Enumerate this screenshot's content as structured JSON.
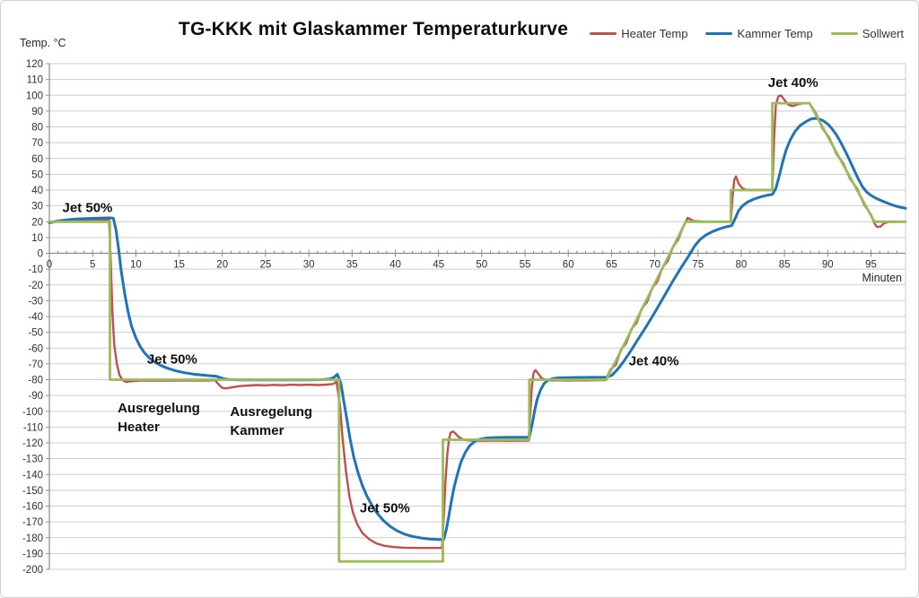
{
  "chart_data": {
    "type": "line",
    "title": "TG-KKK mit Glaskammer Temperaturkurve",
    "xlabel": "Minuten",
    "ylabel": "Temp. °C",
    "xlim": [
      0,
      99
    ],
    "ylim": [
      -200,
      120
    ],
    "x_major_tick": 5,
    "x_minor_tick": 1,
    "y_tick": 10,
    "grid": "horizontal",
    "legend_position": "top-right",
    "series": [
      {
        "name": "Heater Temp",
        "color": "#C0504D",
        "width": 2.4,
        "points": [
          [
            0,
            20
          ],
          [
            3,
            20.4
          ],
          [
            6,
            21
          ],
          [
            6.9,
            21.3
          ],
          [
            7.1,
            -5
          ],
          [
            7.3,
            -38
          ],
          [
            7.5,
            -58
          ],
          [
            7.8,
            -70
          ],
          [
            8.1,
            -77
          ],
          [
            8.5,
            -80.5
          ],
          [
            8.9,
            -81.4
          ],
          [
            9.4,
            -81
          ],
          [
            10.5,
            -80.6
          ],
          [
            12,
            -80.5
          ],
          [
            14,
            -80.6
          ],
          [
            16,
            -80.5
          ],
          [
            18,
            -80.6
          ],
          [
            19.2,
            -80.4
          ],
          [
            19.6,
            -83.2
          ],
          [
            20,
            -85.2
          ],
          [
            20.5,
            -85.5
          ],
          [
            21.2,
            -84.7
          ],
          [
            22,
            -84.1
          ],
          [
            23,
            -83.7
          ],
          [
            24,
            -83.4
          ],
          [
            25,
            -83.6
          ],
          [
            26,
            -83.3
          ],
          [
            27,
            -83.5
          ],
          [
            28,
            -83.2
          ],
          [
            29,
            -83.4
          ],
          [
            30,
            -83.2
          ],
          [
            31,
            -83.4
          ],
          [
            32,
            -83.1
          ],
          [
            32.8,
            -82.7
          ],
          [
            33.2,
            -81.3
          ],
          [
            33.6,
            -96
          ],
          [
            33.9,
            -117
          ],
          [
            34.3,
            -138
          ],
          [
            34.7,
            -154
          ],
          [
            35.1,
            -164
          ],
          [
            35.6,
            -171.5
          ],
          [
            36.2,
            -177
          ],
          [
            37,
            -181
          ],
          [
            37.8,
            -183.6
          ],
          [
            38.7,
            -185.1
          ],
          [
            39.7,
            -185.9
          ],
          [
            41,
            -186.3
          ],
          [
            43,
            -186.5
          ],
          [
            45.4,
            -186.5
          ],
          [
            45.6,
            -168
          ],
          [
            45.8,
            -145
          ],
          [
            46,
            -128
          ],
          [
            46.2,
            -118
          ],
          [
            46.4,
            -113.5
          ],
          [
            46.7,
            -112.8
          ],
          [
            47,
            -114.3
          ],
          [
            47.4,
            -116.6
          ],
          [
            47.9,
            -118
          ],
          [
            48.6,
            -118.5
          ],
          [
            50,
            -118.7
          ],
          [
            51.5,
            -118.5
          ],
          [
            53,
            -118.7
          ],
          [
            54.5,
            -118.6
          ],
          [
            55.4,
            -118.6
          ],
          [
            55.6,
            -102
          ],
          [
            55.8,
            -84
          ],
          [
            56,
            -75.5
          ],
          [
            56.2,
            -74
          ],
          [
            56.5,
            -76
          ],
          [
            56.9,
            -78.9
          ],
          [
            57.4,
            -80.2
          ],
          [
            58.2,
            -80.5
          ],
          [
            59,
            -80.4
          ],
          [
            60,
            -80.5
          ],
          [
            61,
            -80.4
          ],
          [
            62,
            -80.5
          ],
          [
            63,
            -80.4
          ],
          [
            64.3,
            -80.3
          ],
          [
            64.9,
            -73.5
          ],
          [
            65.5,
            -70.5
          ],
          [
            66.1,
            -60.8
          ],
          [
            66.7,
            -57
          ],
          [
            67.3,
            -48
          ],
          [
            67.9,
            -44
          ],
          [
            68.5,
            -35
          ],
          [
            69.1,
            -31
          ],
          [
            69.7,
            -22
          ],
          [
            70.3,
            -18
          ],
          [
            70.9,
            -9
          ],
          [
            71.5,
            -5
          ],
          [
            72.1,
            4
          ],
          [
            72.7,
            8.5
          ],
          [
            73.3,
            17
          ],
          [
            73.6,
            20
          ],
          [
            73.8,
            22.4
          ],
          [
            74.1,
            21.6
          ],
          [
            74.5,
            20.4
          ],
          [
            75.5,
            20.1
          ],
          [
            77,
            20
          ],
          [
            78.8,
            20
          ],
          [
            79,
            36
          ],
          [
            79.2,
            46.5
          ],
          [
            79.4,
            48.6
          ],
          [
            79.7,
            44
          ],
          [
            80.1,
            41.3
          ],
          [
            80.5,
            40.3
          ],
          [
            81.2,
            40
          ],
          [
            82,
            40.1
          ],
          [
            83,
            40
          ],
          [
            83.6,
            40
          ],
          [
            83.8,
            72
          ],
          [
            84,
            94
          ],
          [
            84.3,
            99.3
          ],
          [
            84.6,
            100
          ],
          [
            85,
            97
          ],
          [
            85.5,
            93.8
          ],
          [
            86,
            93.2
          ],
          [
            86.5,
            94.2
          ],
          [
            87.2,
            95
          ],
          [
            87.9,
            95
          ],
          [
            88.6,
            89
          ],
          [
            89.4,
            79
          ],
          [
            90.2,
            73
          ],
          [
            91,
            63
          ],
          [
            91.8,
            57
          ],
          [
            92.6,
            47
          ],
          [
            93.4,
            41
          ],
          [
            94.2,
            31
          ],
          [
            95,
            24.5
          ],
          [
            95.4,
            19
          ],
          [
            95.7,
            16.6
          ],
          [
            96.1,
            16.9
          ],
          [
            96.5,
            18.9
          ],
          [
            97,
            19.8
          ],
          [
            98,
            20
          ],
          [
            99,
            20
          ]
        ]
      },
      {
        "name": "Kammer Temp",
        "color": "#1F74B8",
        "width": 3,
        "points": [
          [
            0,
            19.3
          ],
          [
            1,
            20.4
          ],
          [
            2,
            21.1
          ],
          [
            3,
            21.6
          ],
          [
            4,
            21.9
          ],
          [
            5,
            22.1
          ],
          [
            6,
            22.3
          ],
          [
            7,
            22.4
          ],
          [
            7.4,
            22.2
          ],
          [
            7.7,
            15
          ],
          [
            8,
            3
          ],
          [
            8.3,
            -11
          ],
          [
            8.7,
            -25
          ],
          [
            9.1,
            -37
          ],
          [
            9.5,
            -46
          ],
          [
            10,
            -53.5
          ],
          [
            10.5,
            -59
          ],
          [
            11,
            -63
          ],
          [
            11.6,
            -66.5
          ],
          [
            12.3,
            -69.3
          ],
          [
            13,
            -71.3
          ],
          [
            13.8,
            -73
          ],
          [
            14.7,
            -74.5
          ],
          [
            15.6,
            -75.6
          ],
          [
            16.6,
            -76.4
          ],
          [
            17.6,
            -77
          ],
          [
            18.6,
            -77.5
          ],
          [
            19.3,
            -77.8
          ],
          [
            19.7,
            -78.6
          ],
          [
            20.2,
            -79.5
          ],
          [
            20.8,
            -79.9
          ],
          [
            22,
            -80.1
          ],
          [
            24,
            -80.1
          ],
          [
            26,
            -80.1
          ],
          [
            28,
            -80.1
          ],
          [
            30,
            -80.1
          ],
          [
            31.5,
            -80
          ],
          [
            32.4,
            -79.6
          ],
          [
            32.9,
            -78.6
          ],
          [
            33.3,
            -76.6
          ],
          [
            33.7,
            -82
          ],
          [
            34,
            -92
          ],
          [
            34.4,
            -105
          ],
          [
            34.8,
            -118
          ],
          [
            35.2,
            -129
          ],
          [
            35.7,
            -139
          ],
          [
            36.2,
            -147
          ],
          [
            36.7,
            -153.5
          ],
          [
            37.3,
            -159.5
          ],
          [
            37.9,
            -164.5
          ],
          [
            38.6,
            -169
          ],
          [
            39.4,
            -172.8
          ],
          [
            40.2,
            -175.6
          ],
          [
            41.1,
            -177.8
          ],
          [
            42,
            -179.2
          ],
          [
            43,
            -180.2
          ],
          [
            44,
            -180.8
          ],
          [
            45,
            -181.1
          ],
          [
            45.6,
            -181.2
          ],
          [
            45.9,
            -175
          ],
          [
            46.2,
            -166
          ],
          [
            46.5,
            -156.5
          ],
          [
            46.8,
            -148
          ],
          [
            47.2,
            -139.5
          ],
          [
            47.6,
            -132
          ],
          [
            48.1,
            -126
          ],
          [
            48.6,
            -121.8
          ],
          [
            49.2,
            -119
          ],
          [
            49.8,
            -117.6
          ],
          [
            50.6,
            -116.9
          ],
          [
            51.6,
            -116.6
          ],
          [
            53,
            -116.5
          ],
          [
            54.5,
            -116.5
          ],
          [
            55.5,
            -116.5
          ],
          [
            55.8,
            -109
          ],
          [
            56.1,
            -100
          ],
          [
            56.4,
            -92.5
          ],
          [
            56.8,
            -86.5
          ],
          [
            57.2,
            -82.5
          ],
          [
            57.7,
            -80.2
          ],
          [
            58.3,
            -79.2
          ],
          [
            59,
            -78.8
          ],
          [
            60,
            -78.7
          ],
          [
            61.5,
            -78.6
          ],
          [
            63,
            -78.5
          ],
          [
            64.5,
            -78.4
          ],
          [
            65.1,
            -77
          ],
          [
            65.7,
            -73.5
          ],
          [
            66.4,
            -68.5
          ],
          [
            67.2,
            -62
          ],
          [
            68,
            -55
          ],
          [
            69,
            -46.5
          ],
          [
            70,
            -37.5
          ],
          [
            71,
            -28
          ],
          [
            72,
            -18.5
          ],
          [
            73,
            -9.5
          ],
          [
            74,
            -1
          ],
          [
            74.6,
            4.5
          ],
          [
            75.2,
            8.5
          ],
          [
            75.9,
            11.5
          ],
          [
            76.7,
            13.8
          ],
          [
            77.5,
            15.5
          ],
          [
            78.3,
            16.8
          ],
          [
            78.9,
            17.5
          ],
          [
            79.3,
            22
          ],
          [
            79.7,
            27
          ],
          [
            80.2,
            30.3
          ],
          [
            80.8,
            32.6
          ],
          [
            81.5,
            34.4
          ],
          [
            82.3,
            35.8
          ],
          [
            83.1,
            36.8
          ],
          [
            83.6,
            37.3
          ],
          [
            84,
            41
          ],
          [
            84.4,
            49
          ],
          [
            84.8,
            58
          ],
          [
            85.2,
            65.5
          ],
          [
            85.7,
            72
          ],
          [
            86.2,
            77
          ],
          [
            86.8,
            80.8
          ],
          [
            87.4,
            83
          ],
          [
            88,
            84.8
          ],
          [
            88.5,
            85.4
          ],
          [
            89,
            85
          ],
          [
            89.5,
            83.8
          ],
          [
            90,
            81.8
          ],
          [
            90.5,
            78.8
          ],
          [
            91,
            75
          ],
          [
            91.5,
            70.3
          ],
          [
            92,
            65
          ],
          [
            92.5,
            59.3
          ],
          [
            93,
            53.3
          ],
          [
            93.5,
            47.5
          ],
          [
            94,
            42.3
          ],
          [
            94.5,
            38.8
          ],
          [
            95,
            36.6
          ],
          [
            95.6,
            34.8
          ],
          [
            96.2,
            33.3
          ],
          [
            96.9,
            31.8
          ],
          [
            97.6,
            30.3
          ],
          [
            98.3,
            29.2
          ],
          [
            99,
            28.5
          ]
        ]
      },
      {
        "name": "Sollwert",
        "color": "#9BBB59",
        "width": 2.8,
        "points": [
          [
            0,
            20
          ],
          [
            7,
            20
          ],
          [
            7,
            -80
          ],
          [
            33.5,
            -80
          ],
          [
            33.5,
            -195
          ],
          [
            45.5,
            -195
          ],
          [
            45.5,
            -118
          ],
          [
            55.5,
            -118
          ],
          [
            55.5,
            -80
          ],
          [
            64.4,
            -80
          ],
          [
            73.6,
            20
          ],
          [
            78.8,
            20
          ],
          [
            78.8,
            40
          ],
          [
            83.6,
            40
          ],
          [
            83.6,
            95
          ],
          [
            87.9,
            95
          ],
          [
            95.4,
            20
          ],
          [
            99,
            20
          ]
        ]
      }
    ],
    "annotations": [
      {
        "lines": [
          "Jet 50%"
        ],
        "x": 1.5,
        "y": 29
      },
      {
        "lines": [
          "Jet 50%"
        ],
        "x": 11.3,
        "y": -67
      },
      {
        "lines": [
          "Ausregelung",
          "Heater"
        ],
        "x": 7.9,
        "y": -98
      },
      {
        "lines": [
          "Ausregelung",
          "Kammer"
        ],
        "x": 20.9,
        "y": -100
      },
      {
        "lines": [
          "Jet 50%"
        ],
        "x": 35.9,
        "y": -161
      },
      {
        "lines": [
          "Jet 40%"
        ],
        "x": 67,
        "y": -68
      },
      {
        "lines": [
          "Jet 40%"
        ],
        "x": 83.1,
        "y": 108
      }
    ],
    "colors": {
      "gridline": "#c9cdd2",
      "axis": "#8c8c8c",
      "tick_text": "#303030"
    }
  }
}
